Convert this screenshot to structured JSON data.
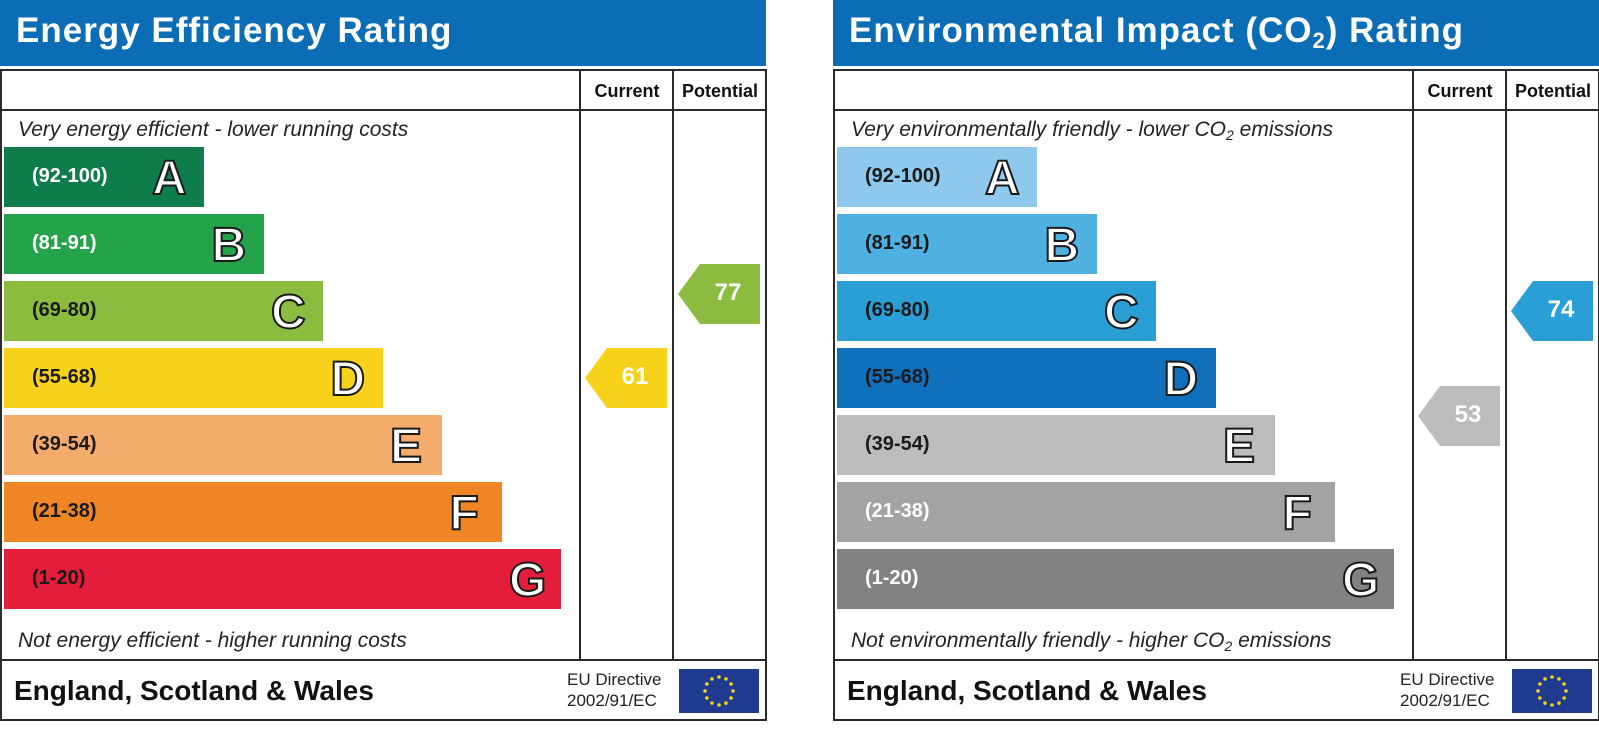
{
  "chart_data": [
    {
      "type": "bar",
      "title": "Energy Efficiency Rating",
      "top_note": "Very energy efficient - lower running costs",
      "bottom_note": "Not energy efficient - higher running costs",
      "columns": [
        "Current",
        "Potential"
      ],
      "bands": [
        {
          "range": "(92-100)",
          "letter": "A",
          "color": "#0f7d4b",
          "text_color": "#ffffff"
        },
        {
          "range": "(81-91)",
          "letter": "B",
          "color": "#24a34b",
          "text_color": "#ffffff"
        },
        {
          "range": "(69-80)",
          "letter": "C",
          "color": "#8cbc3f",
          "text_color": "#1a1a1a"
        },
        {
          "range": "(55-68)",
          "letter": "D",
          "color": "#f7d11a",
          "text_color": "#1a1a1a"
        },
        {
          "range": "(39-54)",
          "letter": "E",
          "color": "#f4ac6c",
          "text_color": "#1a1a1a"
        },
        {
          "range": "(21-38)",
          "letter": "F",
          "color": "#ef8524",
          "text_color": "#1a1a1a"
        },
        {
          "range": "(1-20)",
          "letter": "G",
          "color": "#e41e3a",
          "text_color": "#1a1a1a"
        }
      ],
      "current": {
        "value": 61,
        "band": "D",
        "color": "#f7d11a"
      },
      "potential": {
        "value": 77,
        "band": "C",
        "color": "#8cbc3f"
      },
      "footer_region": "England, Scotland & Wales",
      "directive_line1": "EU Directive",
      "directive_line2": "2002/91/EC"
    },
    {
      "type": "bar",
      "title": "Environmental Impact (CO2) Rating",
      "top_note": "Very environmentally friendly - lower CO2 emissions",
      "bottom_note": "Not environmentally friendly - higher CO2 emissions",
      "columns": [
        "Current",
        "Potential"
      ],
      "bands": [
        {
          "range": "(92-100)",
          "letter": "A",
          "color": "#8ec8ec",
          "text_color": "#1a1a1a"
        },
        {
          "range": "(81-91)",
          "letter": "B",
          "color": "#4fb0e2",
          "text_color": "#1a1a1a"
        },
        {
          "range": "(69-80)",
          "letter": "C",
          "color": "#2a9fd6",
          "text_color": "#1a1a1a"
        },
        {
          "range": "(55-68)",
          "letter": "D",
          "color": "#1170bb",
          "text_color": "#1a1a1a"
        },
        {
          "range": "(39-54)",
          "letter": "E",
          "color": "#bcbcbc",
          "text_color": "#1a1a1a"
        },
        {
          "range": "(21-38)",
          "letter": "F",
          "color": "#a3a3a3",
          "text_color": "#ffffff"
        },
        {
          "range": "(1-20)",
          "letter": "G",
          "color": "#828282",
          "text_color": "#ffffff"
        }
      ],
      "current": {
        "value": 53,
        "band": "E",
        "color": "#bcbcbc"
      },
      "potential": {
        "value": 74,
        "band": "C",
        "color": "#2a9fd6"
      },
      "footer_region": "England, Scotland & Wales",
      "directive_line1": "EU Directive",
      "directive_line2": "2002/91/EC"
    }
  ]
}
